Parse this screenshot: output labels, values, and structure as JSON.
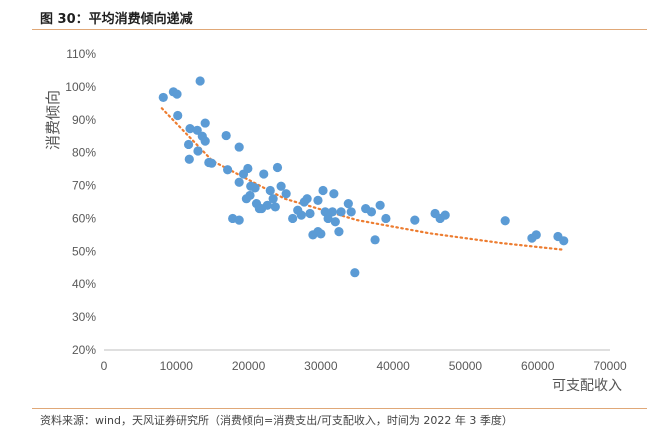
{
  "figure": {
    "title": "图 30：平均消费倾向递减",
    "source": "资料来源：wind，天风证券研究所（消费倾向=消费支出/可支配收入，时间为 2022 年 3 季度）"
  },
  "chart_data": {
    "type": "scatter",
    "title": "",
    "xlabel": "可支配收入",
    "ylabel": "消费倾向",
    "xlim": [
      0,
      70000
    ],
    "ylim": [
      20,
      110
    ],
    "x_ticks": [
      "0",
      "10000",
      "20000",
      "30000",
      "40000",
      "50000",
      "60000",
      "70000"
    ],
    "y_ticks": [
      "20%",
      "30%",
      "40%",
      "50%",
      "60%",
      "70%",
      "80%",
      "90%",
      "100%",
      "110%"
    ],
    "grid": false,
    "legend": "none",
    "series": [
      {
        "color": "#5b9bd5",
        "points": [
          [
            8200,
            96.8
          ],
          [
            9600,
            98.5
          ],
          [
            10100,
            97.8
          ],
          [
            10200,
            91.3
          ],
          [
            13300,
            101.8
          ],
          [
            11700,
            82.5
          ],
          [
            11800,
            78.0
          ],
          [
            11900,
            87.3
          ],
          [
            12900,
            86.8
          ],
          [
            13600,
            85.0
          ],
          [
            14000,
            89.0
          ],
          [
            14000,
            83.5
          ],
          [
            13000,
            80.5
          ],
          [
            14500,
            77.0
          ],
          [
            14900,
            76.8
          ],
          [
            16900,
            85.2
          ],
          [
            17100,
            74.8
          ],
          [
            18700,
            81.7
          ],
          [
            18700,
            71.0
          ],
          [
            19300,
            73.5
          ],
          [
            19900,
            75.2
          ],
          [
            20200,
            67.0
          ],
          [
            20300,
            69.8
          ],
          [
            20900,
            69.3
          ],
          [
            19700,
            66.0
          ],
          [
            21100,
            64.5
          ],
          [
            21500,
            63.0
          ],
          [
            22100,
            73.5
          ],
          [
            22600,
            64.0
          ],
          [
            23000,
            68.5
          ],
          [
            23400,
            66.0
          ],
          [
            23700,
            63.5
          ],
          [
            24000,
            75.5
          ],
          [
            24500,
            69.8
          ],
          [
            25200,
            67.5
          ],
          [
            17800,
            60.0
          ],
          [
            18700,
            59.5
          ],
          [
            26100,
            60.0
          ],
          [
            26800,
            62.5
          ],
          [
            27300,
            61.0
          ],
          [
            27700,
            65.0
          ],
          [
            28100,
            66.0
          ],
          [
            28500,
            61.5
          ],
          [
            28900,
            55.0
          ],
          [
            29600,
            56.0
          ],
          [
            30000,
            55.3
          ],
          [
            30300,
            68.5
          ],
          [
            30600,
            62.0
          ],
          [
            31000,
            60.0
          ],
          [
            31600,
            62.0
          ],
          [
            32000,
            59.0
          ],
          [
            32500,
            56.0
          ],
          [
            32800,
            62.0
          ],
          [
            33800,
            64.5
          ],
          [
            34200,
            62.0
          ],
          [
            34700,
            43.5
          ],
          [
            37000,
            62.0
          ],
          [
            37500,
            53.5
          ],
          [
            38200,
            64.0
          ],
          [
            39000,
            60.0
          ],
          [
            43000,
            59.5
          ],
          [
            45800,
            61.5
          ],
          [
            46500,
            60.0
          ],
          [
            47200,
            61.0
          ],
          [
            55500,
            59.3
          ],
          [
            59200,
            54.0
          ],
          [
            59800,
            55.0
          ],
          [
            62800,
            54.5
          ],
          [
            63600,
            53.2
          ],
          [
            31800,
            67.5
          ],
          [
            29600,
            65.5
          ],
          [
            36200,
            63.0
          ],
          [
            21800,
            63.0
          ]
        ]
      }
    ],
    "trendline": {
      "style": "dotted",
      "color": "#ed7d31",
      "x_range": [
        8000,
        63500
      ],
      "points": [
        [
          8000,
          93.5
        ],
        [
          15000,
          77.5
        ],
        [
          25000,
          66.0
        ],
        [
          35000,
          59.5
        ],
        [
          45000,
          55.5
        ],
        [
          55000,
          52.5
        ],
        [
          63500,
          50.5
        ]
      ]
    }
  }
}
